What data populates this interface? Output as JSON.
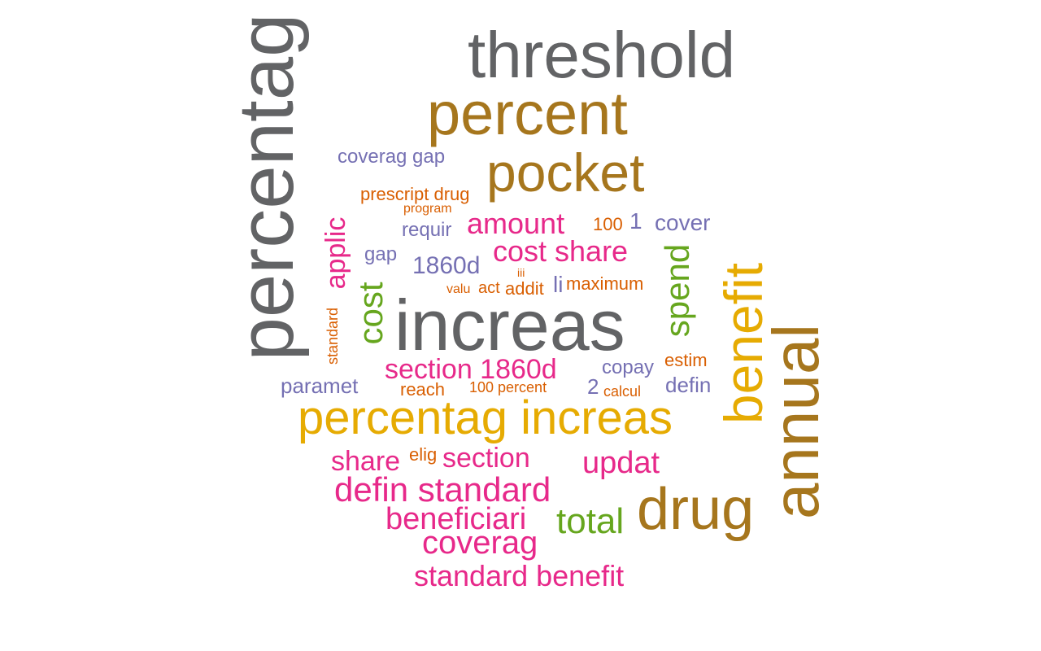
{
  "colors": {
    "grey": "#626365",
    "brown": "#a6761d",
    "gold": "#e6ab02",
    "pink": "#e7298a",
    "purple": "#7570b3",
    "orange": "#d95f02",
    "green": "#66a61e"
  },
  "words": {
    "threshold": "threshold",
    "percent": "percent",
    "pocket": "pocket",
    "coverag_gap": "coverag gap",
    "prescript_drug": "prescript drug",
    "program": "program",
    "requir": "requir",
    "amount": "amount",
    "n100": "100",
    "n1": "1",
    "cover": "cover",
    "gap": "gap",
    "cost_share": "cost share",
    "n1860d": "1860d",
    "iii": "iii",
    "valu": "valu",
    "act": "act",
    "addit": "addit",
    "li": "li",
    "maximum": "maximum",
    "percentag_vertical": "percentag",
    "applic": "applic",
    "cost": "cost",
    "standard": "standard",
    "increas": "increas",
    "spend": "spend",
    "benefit": "benefit",
    "annual": "annual",
    "section_1860d": "section 1860d",
    "copay": "copay",
    "estim": "estim",
    "paramet": "paramet",
    "reach": "reach",
    "n100_percent": "100 percent",
    "n2": "2",
    "calcul": "calcul",
    "defin": "defin",
    "percentag_increas": "percentag increas",
    "share": "share",
    "elig": "elig",
    "section": "section",
    "updat": "updat",
    "defin_standard": "defin standard",
    "drug": "drug",
    "beneficiari": "beneficiari",
    "total": "total",
    "coverag": "coverag",
    "standard_benefit": "standard benefit"
  }
}
